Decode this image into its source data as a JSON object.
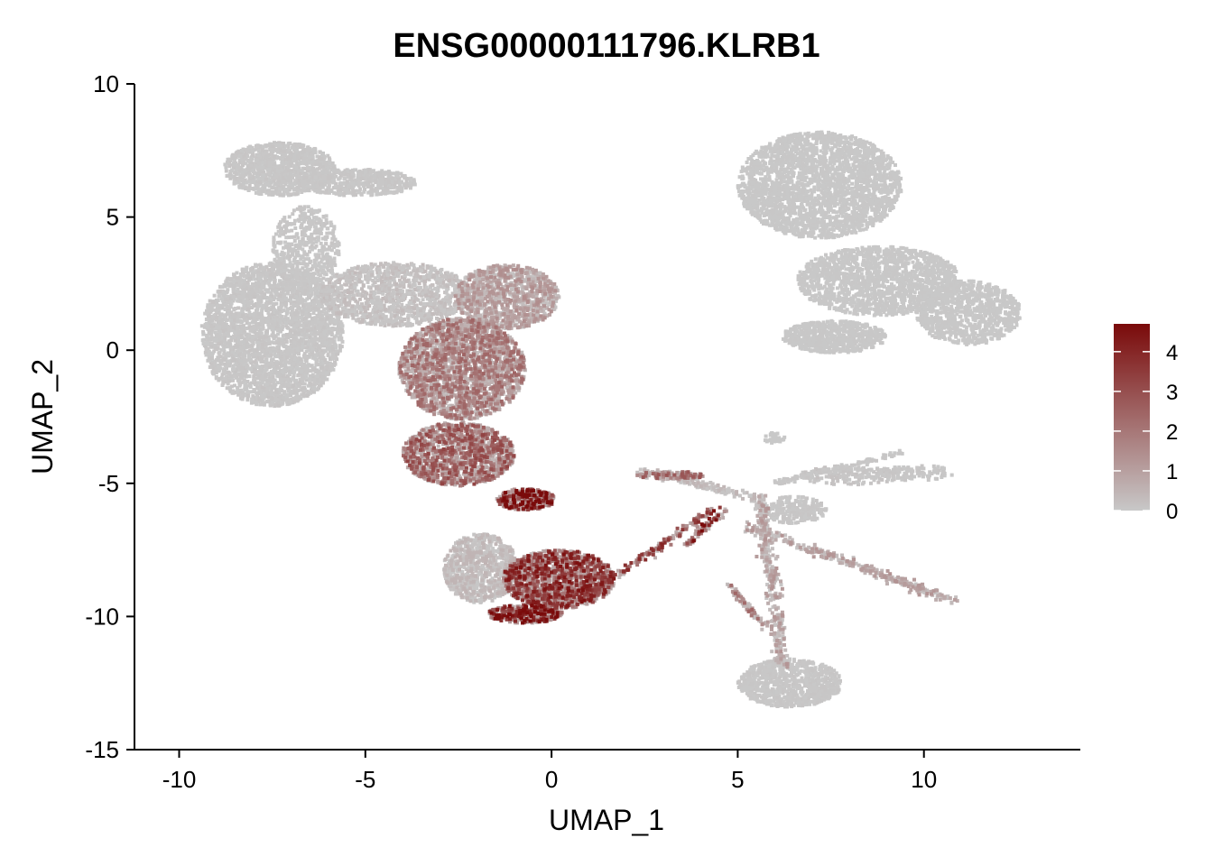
{
  "chart_data": {
    "type": "scatter",
    "title": "ENSG00000111796.KLRB1",
    "xlabel": "UMAP_1",
    "ylabel": "UMAP_2",
    "xlim": [
      -11.2,
      14.2
    ],
    "ylim": [
      -15,
      10
    ],
    "xticks": [
      -10,
      -5,
      0,
      5,
      10
    ],
    "yticks": [
      10,
      5,
      0,
      -5,
      -10,
      -15
    ],
    "xtick_labels": [
      "-10",
      "-5",
      "0",
      "5",
      "10"
    ],
    "ytick_labels": [
      "10",
      "5",
      "0",
      "-5",
      "-10",
      "-15"
    ],
    "grid": false,
    "legend_position": "right",
    "color_scale": {
      "low": "#c8c8c8",
      "high": "#7a0a0a",
      "min": 0,
      "max": 4.7,
      "ticks": [
        0,
        1,
        2,
        3,
        4
      ],
      "tick_labels": [
        "0",
        "1",
        "2",
        "3",
        "4"
      ]
    },
    "clusters": [
      {
        "cx": -7.3,
        "cy": 6.8,
        "rx": 1.5,
        "ry": 1.0,
        "expr": 0.05,
        "n": 1100
      },
      {
        "cx": -5.2,
        "cy": 6.3,
        "rx": 1.6,
        "ry": 0.5,
        "expr": 0.05,
        "n": 500
      },
      {
        "cx": -6.6,
        "cy": 3.8,
        "rx": 0.9,
        "ry": 1.6,
        "expr": 0.05,
        "n": 500
      },
      {
        "cx": -7.5,
        "cy": 0.6,
        "rx": 1.9,
        "ry": 2.7,
        "expr": 0.06,
        "n": 3200
      },
      {
        "cx": -4.2,
        "cy": 2.1,
        "rx": 2.0,
        "ry": 1.2,
        "expr": 0.2,
        "n": 1200
      },
      {
        "cx": -1.2,
        "cy": 2.0,
        "rx": 1.4,
        "ry": 1.2,
        "expr": 0.9,
        "n": 1100
      },
      {
        "cx": -2.4,
        "cy": -0.7,
        "rx": 1.7,
        "ry": 1.9,
        "expr": 1.5,
        "n": 2300
      },
      {
        "cx": -2.5,
        "cy": -3.9,
        "rx": 1.5,
        "ry": 1.2,
        "expr": 2.0,
        "n": 1400
      },
      {
        "cx": -0.7,
        "cy": -5.6,
        "rx": 0.8,
        "ry": 0.4,
        "expr": 3.5,
        "n": 300
      },
      {
        "cx": -1.9,
        "cy": -8.2,
        "rx": 1.0,
        "ry": 1.3,
        "expr": 0.3,
        "n": 800
      },
      {
        "cx": 0.2,
        "cy": -8.6,
        "rx": 1.5,
        "ry": 1.1,
        "expr": 2.8,
        "n": 1500
      },
      {
        "cx": -0.7,
        "cy": -9.9,
        "rx": 1.0,
        "ry": 0.35,
        "expr": 3.2,
        "n": 400
      },
      {
        "cx": 7.2,
        "cy": 6.2,
        "rx": 2.2,
        "ry": 2.0,
        "expr": 0.02,
        "n": 2600
      },
      {
        "cx": 8.8,
        "cy": 2.6,
        "rx": 2.2,
        "ry": 1.3,
        "expr": 0.02,
        "n": 1600
      },
      {
        "cx": 11.2,
        "cy": 1.4,
        "rx": 1.4,
        "ry": 1.2,
        "expr": 0.02,
        "n": 900
      },
      {
        "cx": 7.6,
        "cy": 0.5,
        "rx": 1.4,
        "ry": 0.6,
        "expr": 0.02,
        "n": 600
      },
      {
        "cx": 6.4,
        "cy": -12.5,
        "rx": 1.4,
        "ry": 0.9,
        "expr": 0.05,
        "n": 900
      },
      {
        "cx": 3.2,
        "cy": -4.7,
        "rx": 0.9,
        "ry": 0.15,
        "expr": 1.8,
        "n": 120
      },
      {
        "cx": 8.0,
        "cy": -4.7,
        "rx": 1.4,
        "ry": 0.35,
        "expr": 0.1,
        "n": 160
      },
      {
        "cx": 9.8,
        "cy": -4.6,
        "rx": 1.0,
        "ry": 0.3,
        "expr": 0.05,
        "n": 100
      },
      {
        "cx": 6.5,
        "cy": -6.0,
        "rx": 0.9,
        "ry": 0.5,
        "expr": 0.05,
        "n": 250
      },
      {
        "cx": 6.0,
        "cy": -3.3,
        "rx": 0.3,
        "ry": 0.2,
        "expr": 0.0,
        "n": 30
      }
    ],
    "strands": [
      {
        "x0": 1.0,
        "y0": -9.2,
        "x1": 4.3,
        "y1": -6.0,
        "width": 0.12,
        "expr": 2.5,
        "n": 180
      },
      {
        "x0": 3.6,
        "y0": -7.4,
        "x1": 4.6,
        "y1": -6.0,
        "width": 0.12,
        "expr": 3.0,
        "n": 70
      },
      {
        "x0": 2.4,
        "y0": -4.5,
        "x1": 5.6,
        "y1": -5.6,
        "width": 0.15,
        "expr": 0.3,
        "n": 140
      },
      {
        "x0": 5.2,
        "y0": -6.6,
        "x1": 10.8,
        "y1": -9.4,
        "width": 0.18,
        "expr": 0.8,
        "n": 300
      },
      {
        "x0": 5.6,
        "y0": -5.5,
        "x1": 6.2,
        "y1": -11.8,
        "width": 0.22,
        "expr": 0.8,
        "n": 320
      },
      {
        "x0": 4.7,
        "y0": -8.8,
        "x1": 5.7,
        "y1": -10.3,
        "width": 0.12,
        "expr": 1.5,
        "n": 70
      },
      {
        "x0": 6.0,
        "y0": -5.0,
        "x1": 9.5,
        "y1": -3.8,
        "width": 0.1,
        "expr": 0.05,
        "n": 120
      }
    ]
  }
}
